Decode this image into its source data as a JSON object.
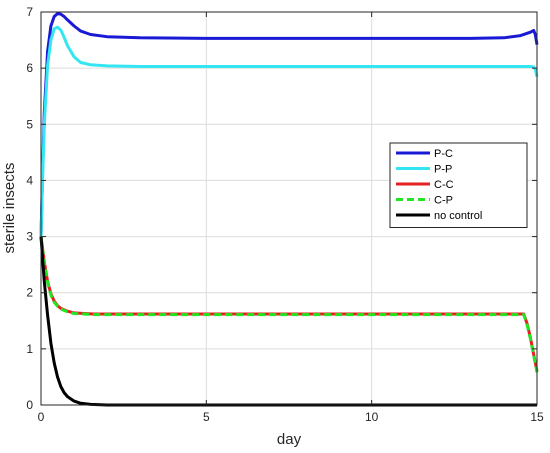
{
  "chart_data": {
    "type": "line",
    "title": "",
    "xlabel": "day",
    "ylabel": "sterile insects",
    "xlim": [
      0,
      15
    ],
    "ylim": [
      0,
      7
    ],
    "xticks": [
      "0",
      "5",
      "10",
      "15"
    ],
    "yticks": [
      "0",
      "1",
      "2",
      "3",
      "4",
      "5",
      "6",
      "7"
    ],
    "grid": true,
    "legend_position": "right",
    "series": [
      {
        "name": "P-C",
        "color": "#1a1ad6",
        "dash": "solid",
        "x": [
          0,
          0.05,
          0.1,
          0.2,
          0.3,
          0.4,
          0.5,
          0.6,
          0.7,
          0.8,
          1.0,
          1.2,
          1.5,
          2.0,
          3.0,
          5.0,
          8.0,
          11.0,
          13.0,
          14.0,
          14.5,
          14.8,
          14.9,
          14.95,
          15.0
        ],
        "y": [
          3.0,
          4.2,
          5.2,
          6.3,
          6.75,
          6.92,
          6.97,
          6.96,
          6.92,
          6.86,
          6.75,
          6.66,
          6.6,
          6.56,
          6.54,
          6.53,
          6.53,
          6.53,
          6.53,
          6.54,
          6.58,
          6.64,
          6.67,
          6.6,
          6.42
        ]
      },
      {
        "name": "P-P",
        "color": "#33e6f2",
        "dash": "solid",
        "x": [
          0,
          0.05,
          0.1,
          0.2,
          0.3,
          0.4,
          0.5,
          0.6,
          0.7,
          0.8,
          1.0,
          1.2,
          1.5,
          2.0,
          3.0,
          5.0,
          8.0,
          11.0,
          13.0,
          14.0,
          14.5,
          14.8,
          14.9,
          14.95,
          15.0
        ],
        "y": [
          3.0,
          4.1,
          5.0,
          6.05,
          6.5,
          6.7,
          6.73,
          6.68,
          6.55,
          6.4,
          6.2,
          6.1,
          6.06,
          6.04,
          6.03,
          6.03,
          6.03,
          6.03,
          6.03,
          6.03,
          6.03,
          6.03,
          6.02,
          5.98,
          5.85
        ]
      },
      {
        "name": "C-C",
        "color": "#e62020",
        "dash": "solid",
        "x": [
          0,
          0.1,
          0.2,
          0.3,
          0.4,
          0.5,
          0.6,
          0.8,
          1.0,
          1.3,
          1.6,
          2.0,
          3.0,
          5.0,
          8.0,
          11.0,
          13.0,
          14.0,
          14.5,
          14.6,
          14.7,
          14.8,
          14.9,
          15.0
        ],
        "y": [
          3.0,
          2.55,
          2.2,
          1.98,
          1.85,
          1.77,
          1.72,
          1.67,
          1.64,
          1.63,
          1.62,
          1.62,
          1.62,
          1.62,
          1.62,
          1.62,
          1.62,
          1.62,
          1.62,
          1.62,
          1.45,
          1.2,
          0.9,
          0.6
        ]
      },
      {
        "name": "C-P",
        "color": "#22e622",
        "dash": "dashed",
        "x": [
          0,
          0.1,
          0.2,
          0.3,
          0.4,
          0.5,
          0.6,
          0.8,
          1.0,
          1.3,
          1.6,
          2.0,
          3.0,
          5.0,
          8.0,
          11.0,
          13.0,
          14.0,
          14.5,
          14.6,
          14.7,
          14.8,
          14.9,
          15.0
        ],
        "y": [
          3.0,
          2.52,
          2.18,
          1.96,
          1.83,
          1.76,
          1.71,
          1.66,
          1.63,
          1.62,
          1.61,
          1.61,
          1.61,
          1.61,
          1.61,
          1.61,
          1.61,
          1.61,
          1.61,
          1.61,
          1.43,
          1.18,
          0.88,
          0.58
        ]
      },
      {
        "name": "no control",
        "color": "#000000",
        "dash": "solid",
        "x": [
          0,
          0.1,
          0.2,
          0.3,
          0.4,
          0.5,
          0.6,
          0.7,
          0.8,
          1.0,
          1.2,
          1.5,
          2.0,
          3.0,
          5.0,
          10.0,
          15.0
        ],
        "y": [
          3.0,
          2.2,
          1.6,
          1.1,
          0.75,
          0.5,
          0.33,
          0.22,
          0.15,
          0.07,
          0.03,
          0.01,
          0.0,
          0.0,
          0.0,
          0.0,
          0.0
        ]
      }
    ]
  }
}
